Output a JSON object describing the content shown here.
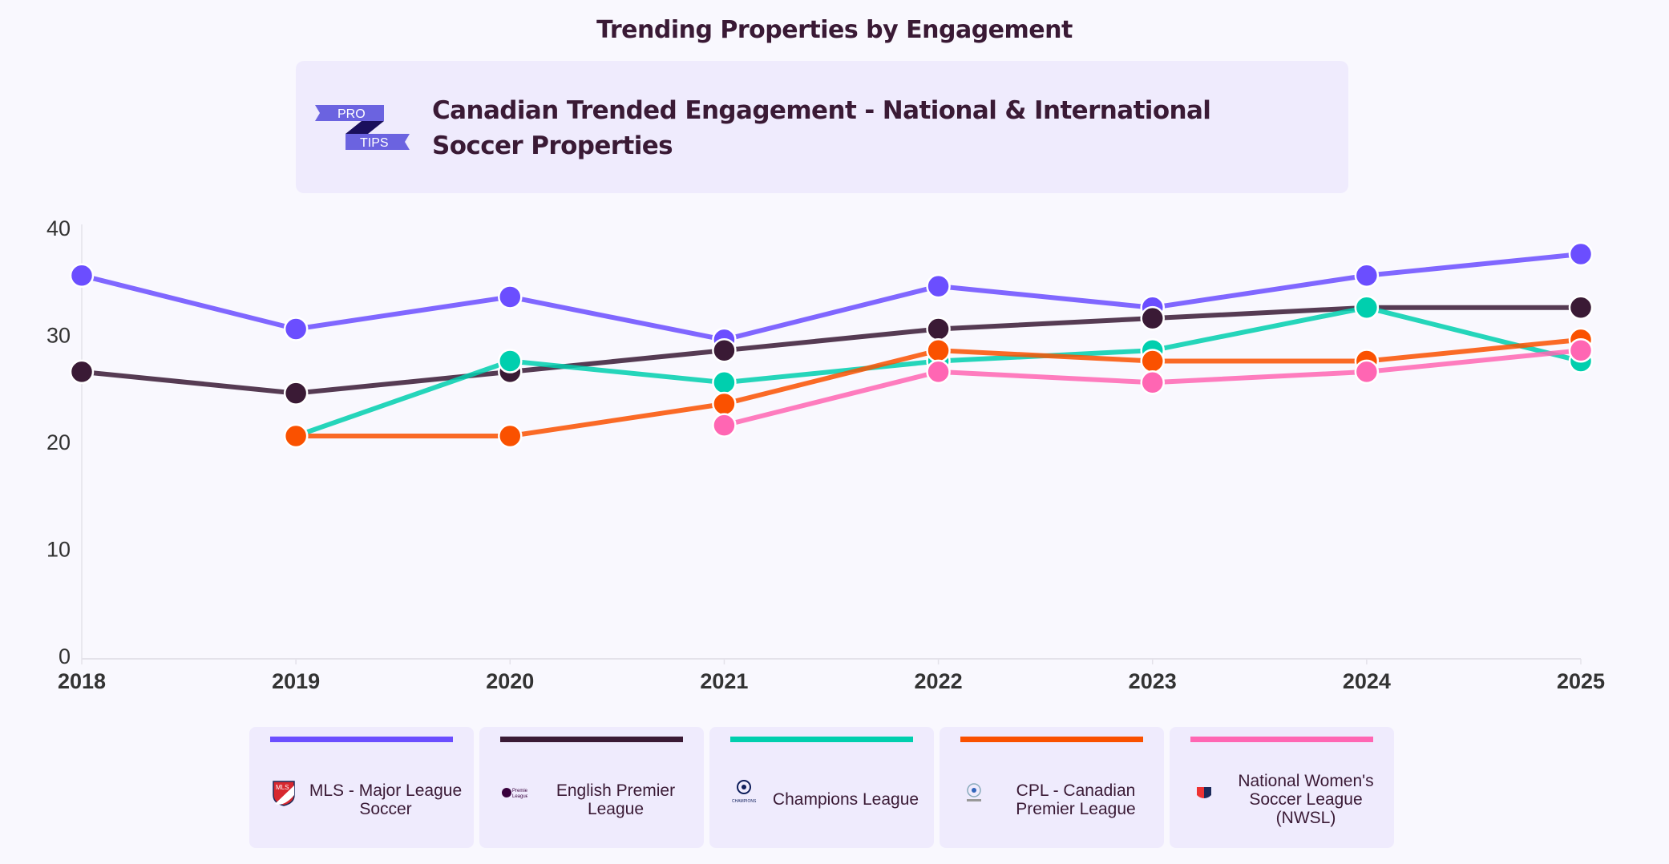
{
  "header": {
    "title": "Trending Properties by Engagement"
  },
  "pro_tips": {
    "badge_top": "PRO",
    "badge_bottom": "TIPS",
    "text": "Canadian Trended Engagement - National & International Soccer Properties"
  },
  "chart_data": {
    "type": "line",
    "x": [
      "2018",
      "2019",
      "2020",
      "2021",
      "2022",
      "2023",
      "2024",
      "2025"
    ],
    "ylim": [
      0,
      40
    ],
    "yticks": [
      "0",
      "10",
      "20",
      "30",
      "40"
    ],
    "grid": false,
    "legend_placement": "bottom",
    "series": [
      {
        "name": "MLS - Major League Soccer",
        "color": "#6b4eff",
        "logo": "mls-logo",
        "values": [
          35.6,
          30.6,
          33.6,
          29.6,
          34.6,
          32.6,
          35.6,
          37.6
        ]
      },
      {
        "name": "English Premier League",
        "color": "#3a1a35",
        "logo": "premier-league-logo",
        "values": [
          26.6,
          24.6,
          26.6,
          28.6,
          30.6,
          31.6,
          32.6,
          32.6
        ]
      },
      {
        "name": "Champions League",
        "color": "#00cfae",
        "logo": "champions-league-logo",
        "values": [
          null,
          20.6,
          27.6,
          25.6,
          27.6,
          28.6,
          32.6,
          27.6
        ]
      },
      {
        "name": "CPL - Canadian Premier League",
        "color": "#fa5100",
        "logo": "cpl-logo",
        "values": [
          null,
          20.6,
          20.6,
          23.6,
          28.6,
          27.6,
          27.6,
          29.6
        ]
      },
      {
        "name": "National Women's Soccer League (NWSL)",
        "color": "#ff66b3",
        "logo": "nwsl-logo",
        "values": [
          null,
          null,
          null,
          21.6,
          26.6,
          25.6,
          26.6,
          28.6
        ]
      }
    ]
  }
}
